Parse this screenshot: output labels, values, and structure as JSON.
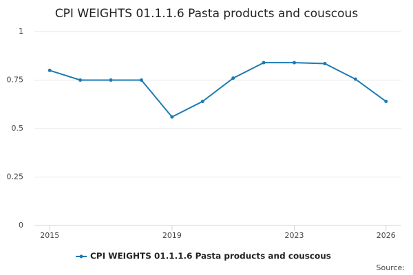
{
  "chart_data": {
    "type": "line",
    "title": "CPI WEIGHTS 01.1.1.6 Pasta products and couscous",
    "x": [
      2015,
      2016,
      2017,
      2018,
      2019,
      2020,
      2021,
      2022,
      2023,
      2024,
      2025,
      2026
    ],
    "series": [
      {
        "name": "CPI WEIGHTS 01.1.1.6 Pasta products and couscous",
        "color": "#1a7bb5",
        "values": [
          0.8,
          0.75,
          0.75,
          0.75,
          0.56,
          0.64,
          0.76,
          0.84,
          0.84,
          0.835,
          0.755,
          0.64
        ]
      }
    ],
    "xlim": [
      2014.5,
      2026.5
    ],
    "xticks": [
      2015,
      2019,
      2023,
      2026
    ],
    "ylim": [
      0,
      1
    ],
    "yticks": [
      0,
      0.25,
      0.5,
      0.75,
      1
    ],
    "grid": true,
    "legend": "bottom",
    "source": "Source:"
  }
}
